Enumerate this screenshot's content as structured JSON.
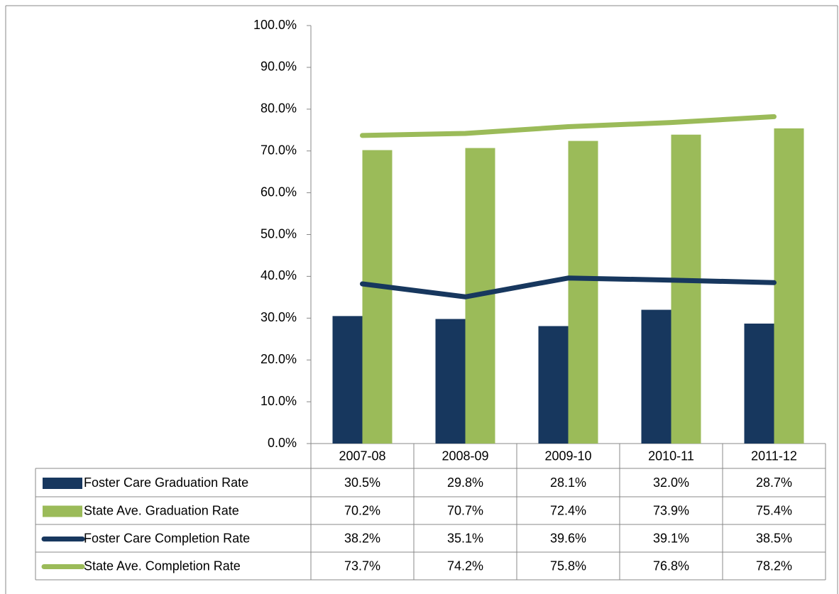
{
  "chart_data": {
    "type": "bar",
    "categories": [
      "2007-08",
      "2008-09",
      "2009-10",
      "2010-11",
      "2011-12"
    ],
    "series": [
      {
        "name": "Foster Care Graduation Rate",
        "type": "bar",
        "color": "#17375e",
        "values": [
          30.5,
          29.8,
          28.1,
          32.0,
          28.7
        ],
        "value_labels": [
          "30.5%",
          "29.8%",
          "28.1%",
          "32.0%",
          "28.7%"
        ]
      },
      {
        "name": "State Ave. Graduation Rate",
        "type": "bar",
        "color": "#9bbb59",
        "values": [
          70.2,
          70.7,
          72.4,
          73.9,
          75.4
        ],
        "value_labels": [
          "70.2%",
          "70.7%",
          "72.4%",
          "73.9%",
          "75.4%"
        ]
      },
      {
        "name": "Foster Care Completion Rate",
        "type": "line",
        "color": "#17375e",
        "values": [
          38.2,
          35.1,
          39.6,
          39.1,
          38.5
        ],
        "value_labels": [
          "38.2%",
          "35.1%",
          "39.6%",
          "39.1%",
          "38.5%"
        ]
      },
      {
        "name": "State Ave. Completion Rate",
        "type": "line",
        "color": "#9bbb59",
        "values": [
          73.7,
          74.2,
          75.8,
          76.8,
          78.2
        ],
        "value_labels": [
          "73.7%",
          "74.2%",
          "75.8%",
          "76.8%",
          "78.2%"
        ]
      }
    ],
    "ylim": [
      0,
      100
    ],
    "yticks": [
      {
        "value": 0,
        "label": "0.0%"
      },
      {
        "value": 10,
        "label": "10.0%"
      },
      {
        "value": 20,
        "label": "20.0%"
      },
      {
        "value": 30,
        "label": "30.0%"
      },
      {
        "value": 40,
        "label": "40.0%"
      },
      {
        "value": 50,
        "label": "50.0%"
      },
      {
        "value": 60,
        "label": "60.0%"
      },
      {
        "value": 70,
        "label": "70.0%"
      },
      {
        "value": 80,
        "label": "80.0%"
      },
      {
        "value": 90,
        "label": "90.0%"
      },
      {
        "value": 100,
        "label": "100.0%"
      }
    ],
    "grid": false
  }
}
